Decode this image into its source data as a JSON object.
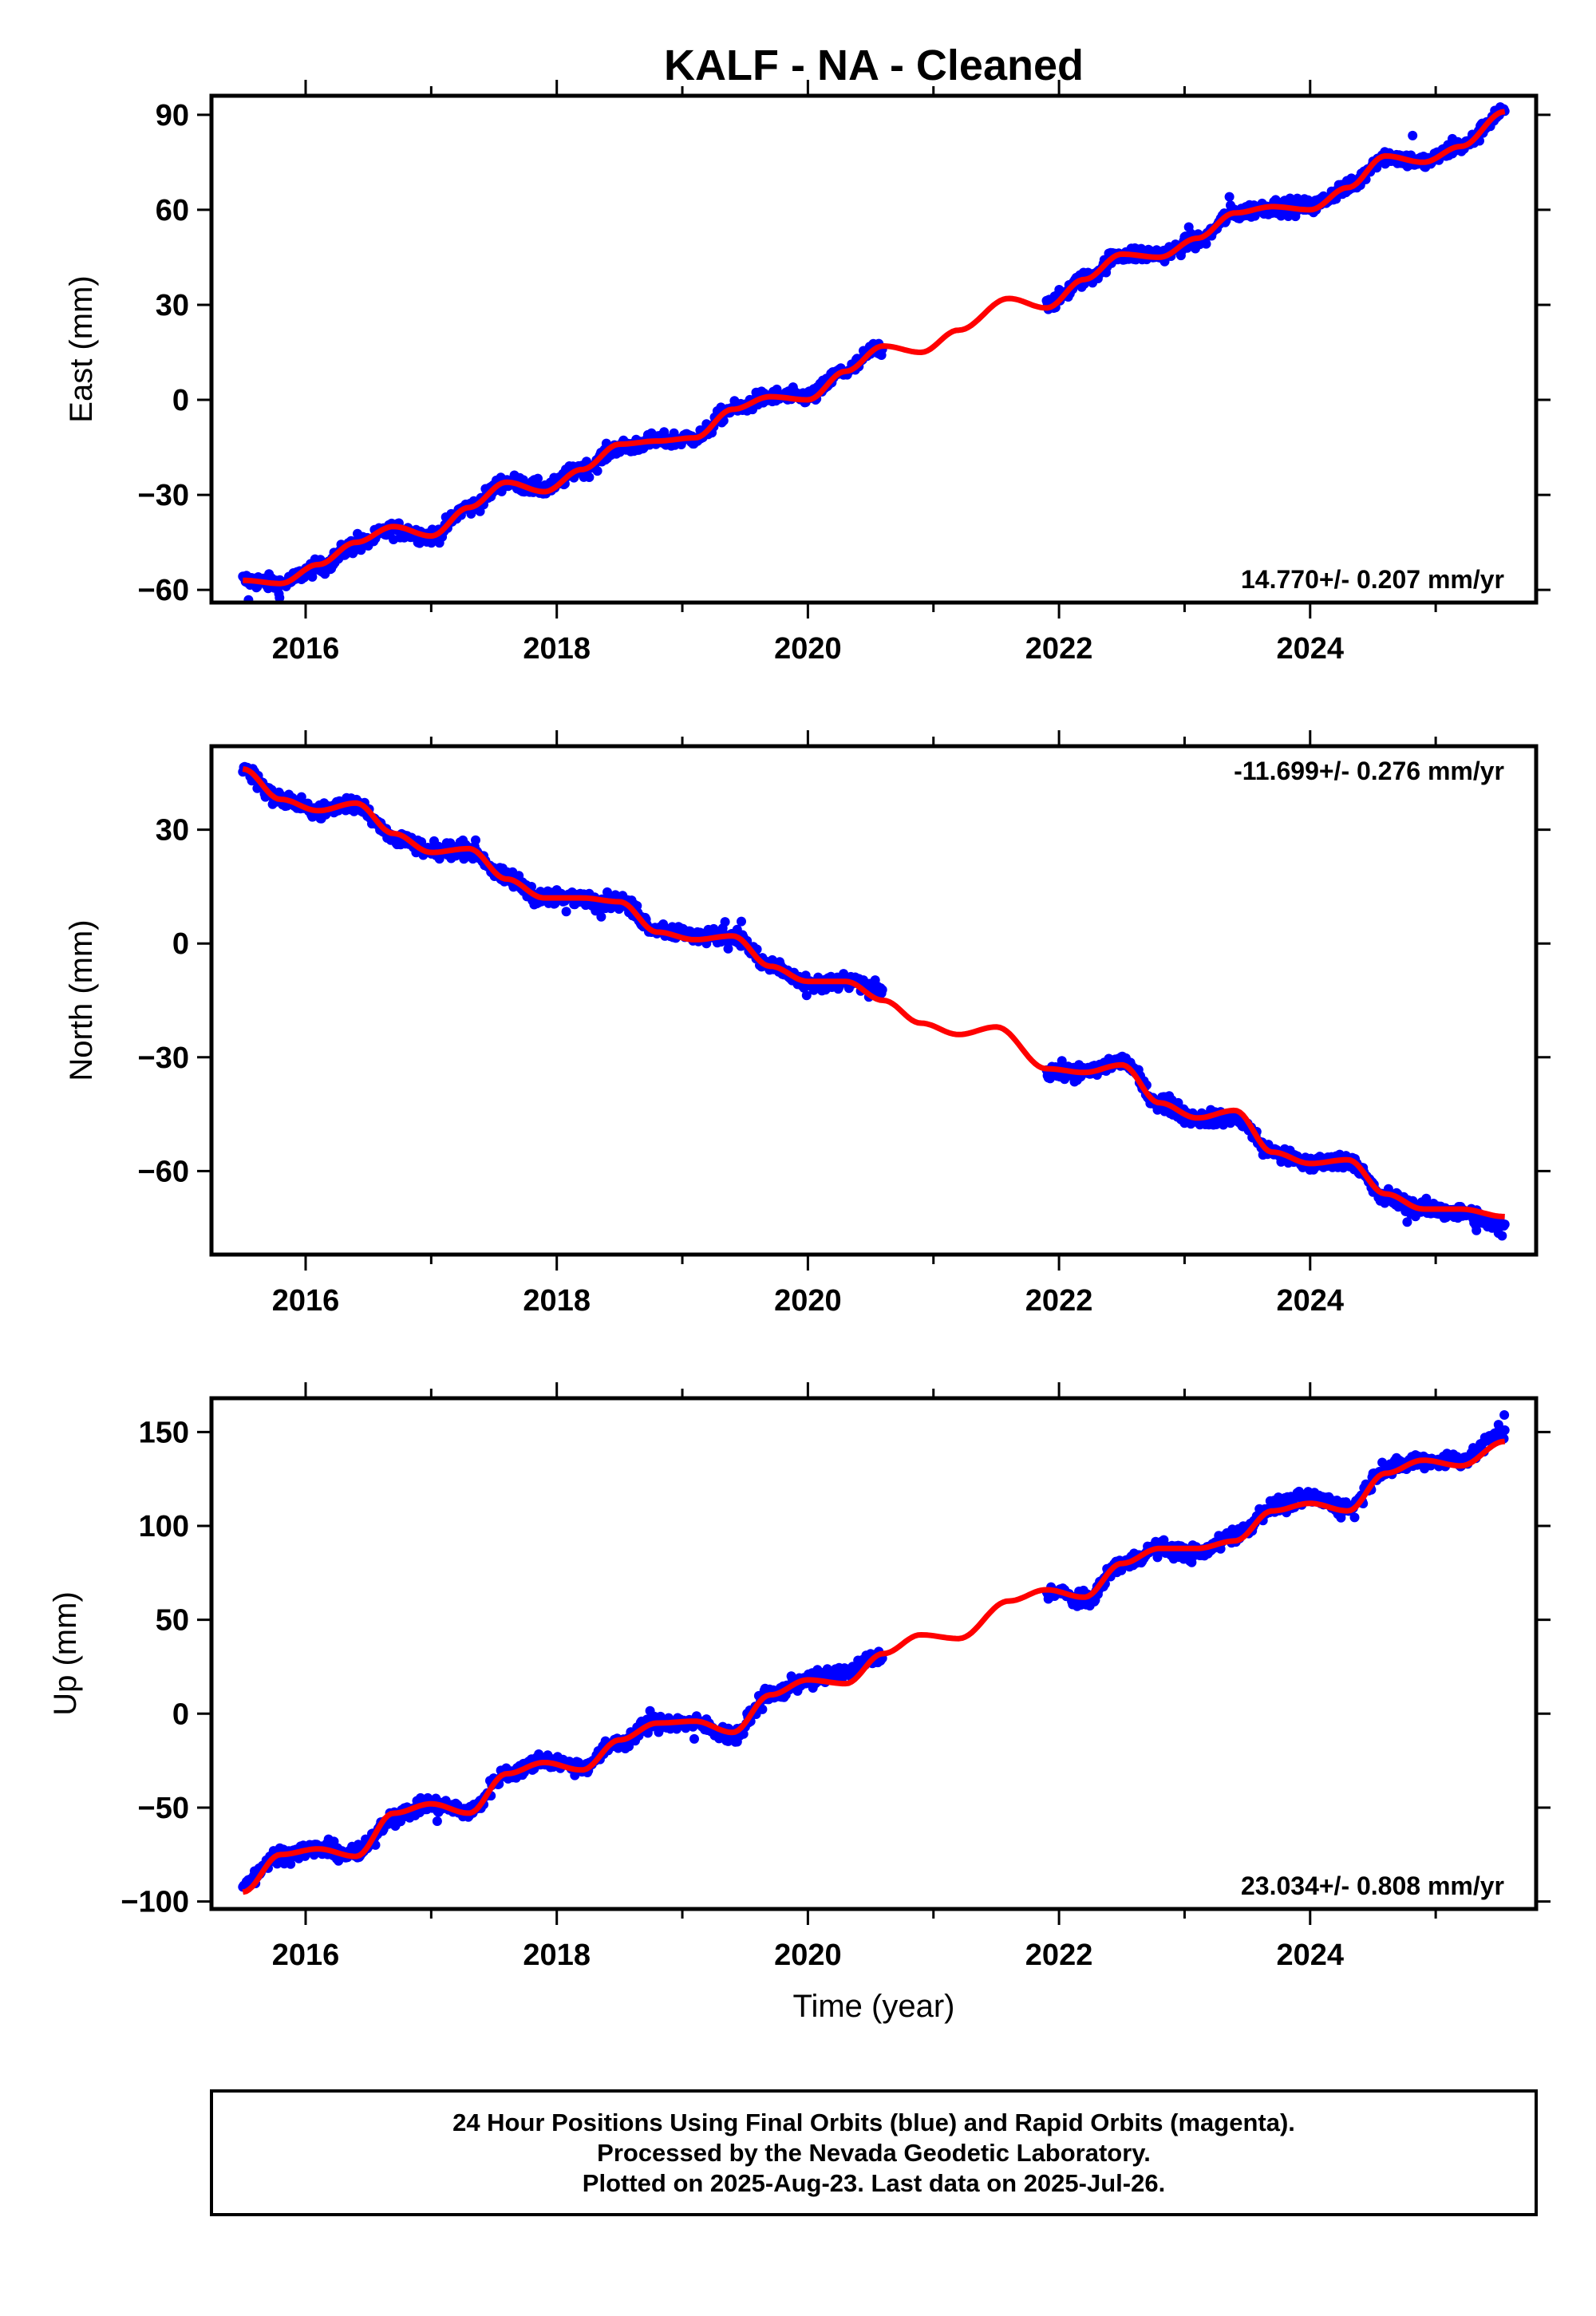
{
  "title": "KALF  - NA - Cleaned",
  "colors": {
    "final_orbits": "#0000ff",
    "model": "#ff0000",
    "frame": "#000000"
  },
  "footer": {
    "line1": "24 Hour Positions Using Final Orbits (blue) and Rapid Orbits (magenta).",
    "line2": "Processed by the Nevada Geodetic Laboratory.",
    "line3": "Plotted on 2025-Aug-23. Last data on 2025-Jul-26."
  },
  "chart_data": [
    {
      "type": "scatter",
      "ylabel": "East (mm)",
      "xlabel": "",
      "xlim": [
        2015.25,
        2025.8
      ],
      "ylim": [
        -64,
        96
      ],
      "xticks": [
        2016,
        2018,
        2020,
        2022,
        2024
      ],
      "yticks": [
        -60,
        -30,
        0,
        30,
        60,
        90
      ],
      "rate_label": "14.770+/- 0.207 mm/yr",
      "rate_position": "bottom-right",
      "data_gap": [
        2020.6,
        2021.9
      ],
      "series": [
        {
          "kind": "points",
          "x": [
            2015.5,
            2015.8,
            2016.1,
            2016.4,
            2016.7,
            2017.0,
            2017.3,
            2017.6,
            2017.9,
            2018.2,
            2018.5,
            2018.8,
            2019.1,
            2019.4,
            2019.7,
            2020.0,
            2020.3,
            2020.55,
            2021.95,
            2022.2,
            2022.5,
            2022.8,
            2023.1,
            2023.4,
            2023.7,
            2024.0,
            2024.3,
            2024.6,
            2024.9,
            2025.2,
            2025.55
          ],
          "y": [
            -57,
            -58,
            -53,
            -46,
            -41,
            -43,
            -34,
            -26,
            -28,
            -22,
            -15,
            -13,
            -12,
            -3,
            1,
            1,
            9,
            16,
            31,
            38,
            46,
            46,
            50,
            59,
            61,
            61,
            67,
            77,
            75,
            80,
            91
          ]
        },
        {
          "kind": "model",
          "x": [
            2015.5,
            2015.8,
            2016.1,
            2016.4,
            2016.7,
            2017.0,
            2017.3,
            2017.6,
            2017.9,
            2018.2,
            2018.5,
            2018.8,
            2019.1,
            2019.4,
            2019.7,
            2020.0,
            2020.3,
            2020.6,
            2020.9,
            2021.2,
            2021.6,
            2021.9,
            2022.2,
            2022.5,
            2022.8,
            2023.1,
            2023.4,
            2023.7,
            2024.0,
            2024.3,
            2024.6,
            2024.9,
            2025.2,
            2025.55
          ],
          "y": [
            -57,
            -58,
            -52,
            -45,
            -40,
            -43,
            -34,
            -26,
            -29,
            -22,
            -14,
            -13,
            -12,
            -3,
            1,
            0,
            9,
            17,
            15,
            22,
            32,
            29,
            38,
            46,
            45,
            51,
            59,
            61,
            60,
            67,
            77,
            75,
            80,
            91
          ]
        }
      ]
    },
    {
      "type": "scatter",
      "ylabel": "North (mm)",
      "xlabel": "",
      "xlim": [
        2015.25,
        2025.8
      ],
      "ylim": [
        -82,
        52
      ],
      "xticks": [
        2016,
        2018,
        2020,
        2022,
        2024
      ],
      "yticks": [
        -60,
        -30,
        0,
        30
      ],
      "rate_label": "-11.699+/- 0.276 mm/yr",
      "rate_position": "top-right",
      "data_gap": [
        2020.6,
        2021.9
      ],
      "series": [
        {
          "kind": "points",
          "x": [
            2015.5,
            2015.8,
            2016.1,
            2016.4,
            2016.7,
            2017.0,
            2017.3,
            2017.6,
            2017.9,
            2018.2,
            2018.5,
            2018.8,
            2019.1,
            2019.4,
            2019.7,
            2020.0,
            2020.3,
            2020.55,
            2021.95,
            2022.2,
            2022.5,
            2022.8,
            2023.1,
            2023.4,
            2023.7,
            2024.0,
            2024.3,
            2024.6,
            2024.9,
            2025.2,
            2025.55
          ],
          "y": [
            46,
            38,
            35,
            37,
            28,
            24,
            25,
            17,
            12,
            12,
            11,
            4,
            2,
            2,
            -6,
            -11,
            -10,
            -12,
            -34,
            -34,
            -31,
            -42,
            -46,
            -46,
            -55,
            -58,
            -57,
            -67,
            -70,
            -71,
            -75
          ]
        },
        {
          "kind": "model",
          "x": [
            2015.5,
            2015.8,
            2016.1,
            2016.4,
            2016.7,
            2017.0,
            2017.3,
            2017.6,
            2017.9,
            2018.2,
            2018.5,
            2018.8,
            2019.1,
            2019.4,
            2019.7,
            2020.0,
            2020.3,
            2020.6,
            2020.9,
            2021.2,
            2021.5,
            2021.9,
            2022.2,
            2022.5,
            2022.8,
            2023.1,
            2023.4,
            2023.7,
            2024.0,
            2024.3,
            2024.6,
            2024.9,
            2025.2,
            2025.55
          ],
          "y": [
            46,
            38,
            35,
            37,
            29,
            24,
            25,
            17,
            12,
            12,
            11,
            3,
            1,
            2,
            -6,
            -10,
            -10,
            -15,
            -21,
            -24,
            -22,
            -33,
            -34,
            -32,
            -42,
            -46,
            -44,
            -55,
            -58,
            -57,
            -66,
            -70,
            -70,
            -72
          ]
        }
      ]
    },
    {
      "type": "scatter",
      "ylabel": "Up (mm)",
      "xlabel": "Time (year)",
      "xlim": [
        2015.25,
        2025.8
      ],
      "ylim": [
        -104,
        168
      ],
      "xticks": [
        2016,
        2018,
        2020,
        2022,
        2024
      ],
      "yticks": [
        -100,
        -50,
        0,
        50,
        100,
        150
      ],
      "rate_label": "23.034+/- 0.808 mm/yr",
      "rate_position": "bottom-right",
      "data_gap": [
        2020.6,
        2021.9
      ],
      "series": [
        {
          "kind": "points",
          "x": [
            2015.5,
            2015.8,
            2016.1,
            2016.4,
            2016.7,
            2017.0,
            2017.3,
            2017.6,
            2017.9,
            2018.2,
            2018.5,
            2018.8,
            2019.1,
            2019.4,
            2019.7,
            2020.0,
            2020.3,
            2020.55,
            2021.95,
            2022.2,
            2022.5,
            2022.8,
            2023.1,
            2023.4,
            2023.7,
            2024.0,
            2024.3,
            2024.6,
            2024.9,
            2025.2,
            2025.55
          ],
          "y": [
            -90,
            -75,
            -72,
            -75,
            -55,
            -48,
            -52,
            -32,
            -25,
            -28,
            -15,
            -5,
            -5,
            -12,
            10,
            18,
            22,
            30,
            65,
            60,
            80,
            88,
            85,
            95,
            110,
            115,
            110,
            130,
            135,
            135,
            150
          ]
        },
        {
          "kind": "model",
          "x": [
            2015.5,
            2015.8,
            2016.1,
            2016.4,
            2016.7,
            2017.0,
            2017.3,
            2017.6,
            2017.9,
            2018.2,
            2018.5,
            2018.8,
            2019.1,
            2019.4,
            2019.7,
            2020.0,
            2020.3,
            2020.6,
            2020.9,
            2021.2,
            2021.6,
            2021.9,
            2022.2,
            2022.5,
            2022.8,
            2023.1,
            2023.4,
            2023.7,
            2024.0,
            2024.3,
            2024.6,
            2024.9,
            2025.2,
            2025.55
          ],
          "y": [
            -95,
            -75,
            -72,
            -76,
            -53,
            -48,
            -53,
            -32,
            -26,
            -30,
            -14,
            -5,
            -4,
            -10,
            10,
            18,
            16,
            32,
            42,
            40,
            60,
            66,
            62,
            80,
            88,
            88,
            92,
            108,
            112,
            108,
            128,
            135,
            132,
            145
          ]
        }
      ]
    }
  ]
}
